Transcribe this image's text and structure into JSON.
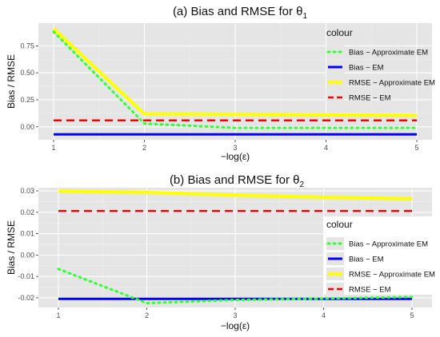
{
  "legend": {
    "title": "colour",
    "entries": [
      {
        "label": "Bias − Approximate EM",
        "color": "#33ff33",
        "style": "dotted"
      },
      {
        "label": "Bias − EM",
        "color": "#0000ff",
        "style": "solid"
      },
      {
        "label": "RMSE − Approximate EM",
        "color": "#ffff00",
        "style": "solid"
      },
      {
        "label": "RMSE − EM",
        "color": "#ff0000",
        "style": "dashed"
      }
    ]
  },
  "chart_data": [
    {
      "type": "line",
      "title_text": "(a) Bias and RMSE for θ",
      "title_sub": "1",
      "xlabel": "−log(ε)",
      "ylabel": "Bias / RMSE",
      "x": [
        1,
        2,
        3,
        4,
        5
      ],
      "xlim": [
        1,
        5
      ],
      "ylim": [
        -0.12,
        0.96
      ],
      "xticks": [
        1,
        2,
        3,
        4,
        5
      ],
      "yticks": [
        0,
        0.25,
        0.5,
        0.75
      ],
      "ytick_labels": [
        "0.00",
        "0.25",
        "0.50",
        "0.75"
      ],
      "grid": true,
      "legend_position": "right",
      "series": [
        {
          "name": "RMSE − Approximate EM",
          "values": [
            0.91,
            0.12,
            0.115,
            0.11,
            0.105
          ]
        },
        {
          "name": "RMSE − EM",
          "values": [
            0.06,
            0.06,
            0.06,
            0.06,
            0.06
          ]
        },
        {
          "name": "Bias − EM",
          "values": [
            -0.07,
            -0.07,
            -0.07,
            -0.07,
            -0.07
          ]
        },
        {
          "name": "Bias − Approximate EM",
          "values": [
            0.88,
            0.03,
            -0.01,
            -0.01,
            -0.01
          ]
        }
      ]
    },
    {
      "type": "line",
      "title_text": "(b) Bias and RMSE for θ",
      "title_sub": "2",
      "xlabel": "−log(ε)",
      "ylabel": "Bias / RMSE",
      "x": [
        1,
        2,
        3,
        4,
        5
      ],
      "xlim": [
        1,
        5
      ],
      "ylim": [
        -0.0245,
        0.0315
      ],
      "xticks": [
        1,
        2,
        3,
        4,
        5
      ],
      "yticks": [
        -0.02,
        -0.01,
        0,
        0.01,
        0.02,
        0.03
      ],
      "ytick_labels": [
        "-0.02",
        "-0.01",
        "0.00",
        "0.01",
        "0.02",
        "0.03"
      ],
      "grid": true,
      "legend_position": "right",
      "series": [
        {
          "name": "RMSE − Approximate EM",
          "values": [
            0.0299,
            0.0293,
            0.028,
            0.027,
            0.0263
          ]
        },
        {
          "name": "RMSE − EM",
          "values": [
            0.0206,
            0.0206,
            0.0206,
            0.0206,
            0.0206
          ]
        },
        {
          "name": "Bias − EM",
          "values": [
            -0.0205,
            -0.0205,
            -0.0205,
            -0.0205,
            -0.0205
          ]
        },
        {
          "name": "Bias − Approximate EM",
          "values": [
            -0.0065,
            -0.0225,
            -0.021,
            -0.0203,
            -0.0196
          ]
        }
      ]
    }
  ]
}
